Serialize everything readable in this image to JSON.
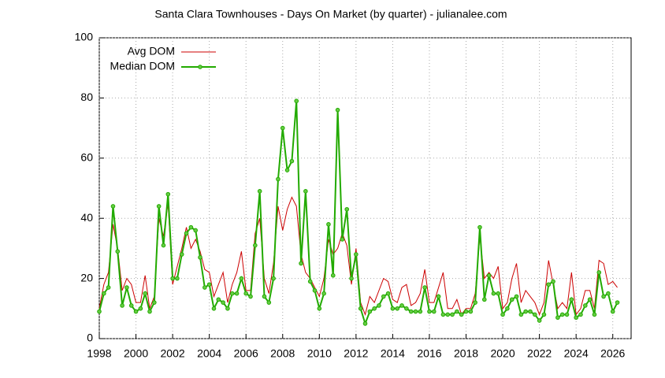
{
  "chart_data": {
    "type": "line",
    "title": "Santa Clara Townhouses - Days On Market (by quarter) - julianalee.com",
    "x": [
      1998,
      1998.25,
      1998.5,
      1998.75,
      1999,
      1999.25,
      1999.5,
      1999.75,
      2000,
      2000.25,
      2000.5,
      2000.75,
      2001,
      2001.25,
      2001.5,
      2001.75,
      2002,
      2002.25,
      2002.5,
      2002.75,
      2003,
      2003.25,
      2003.5,
      2003.75,
      2004,
      2004.25,
      2004.5,
      2004.75,
      2005,
      2005.25,
      2005.5,
      2005.75,
      2006,
      2006.25,
      2006.5,
      2006.75,
      2007,
      2007.25,
      2007.5,
      2007.75,
      2008,
      2008.25,
      2008.5,
      2008.75,
      2009,
      2009.25,
      2009.5,
      2009.75,
      2010,
      2010.25,
      2010.5,
      2010.75,
      2011,
      2011.25,
      2011.5,
      2011.75,
      2012,
      2012.25,
      2012.5,
      2012.75,
      2013,
      2013.25,
      2013.5,
      2013.75,
      2014,
      2014.25,
      2014.5,
      2014.75,
      2015,
      2015.25,
      2015.5,
      2015.75,
      2016,
      2016.25,
      2016.5,
      2016.75,
      2017,
      2017.25,
      2017.5,
      2017.75,
      2018,
      2018.25,
      2018.5,
      2018.75,
      2019,
      2019.25,
      2019.5,
      2019.75,
      2020,
      2020.25,
      2020.5,
      2020.75,
      2021,
      2021.25,
      2021.5,
      2021.75,
      2022,
      2022.25,
      2022.5,
      2022.75,
      2023,
      2023.25,
      2023.5,
      2023.75,
      2024,
      2024.25,
      2024.5,
      2024.75,
      2025,
      2025.25,
      2025.5,
      2025.75,
      2026,
      2026.25
    ],
    "series": [
      {
        "name": "Avg DOM",
        "color": "#cc0000",
        "values": [
          10,
          18,
          22,
          38,
          30,
          16,
          20,
          18,
          12,
          12,
          21,
          10,
          14,
          40,
          34,
          45,
          18,
          24,
          30,
          37,
          30,
          33,
          29,
          23,
          22,
          14,
          18,
          22,
          12,
          18,
          22,
          29,
          16,
          16,
          35,
          40,
          20,
          15,
          25,
          44,
          36,
          43,
          47,
          44,
          28,
          22,
          20,
          17,
          14,
          20,
          33,
          28,
          30,
          35,
          31,
          18,
          30,
          12,
          8,
          14,
          12,
          16,
          20,
          19,
          13,
          12,
          17,
          18,
          11,
          12,
          15,
          23,
          12,
          12,
          17,
          22,
          10,
          10,
          13,
          8,
          10,
          10,
          15,
          34,
          20,
          22,
          20,
          24,
          10,
          12,
          20,
          25,
          12,
          16,
          14,
          12,
          8,
          12,
          26,
          18,
          10,
          12,
          10,
          22,
          8,
          10,
          16,
          16,
          10,
          26,
          25,
          18,
          19,
          17
        ]
      },
      {
        "name": "Median DOM",
        "color": "#22aa00",
        "values": [
          9,
          15,
          17,
          44,
          29,
          11,
          17,
          11,
          9,
          10,
          15,
          9,
          12,
          44,
          31,
          48,
          20,
          20,
          28,
          35,
          37,
          36,
          27,
          17,
          18,
          10,
          13,
          12,
          10,
          15,
          15,
          20,
          15,
          14,
          31,
          49,
          14,
          12,
          20,
          53,
          70,
          56,
          59,
          79,
          25,
          49,
          19,
          16,
          10,
          15,
          38,
          21,
          76,
          33,
          43,
          20,
          28,
          10,
          5,
          9,
          10,
          11,
          14,
          15,
          10,
          10,
          11,
          10,
          9,
          9,
          9,
          17,
          9,
          9,
          14,
          8,
          8,
          8,
          9,
          8,
          9,
          9,
          12,
          37,
          13,
          21,
          15,
          15,
          8,
          10,
          13,
          14,
          8,
          9,
          9,
          8,
          6,
          8,
          18,
          19,
          7,
          8,
          8,
          13,
          7,
          8,
          11,
          13,
          8,
          22,
          14,
          15,
          9,
          12
        ]
      }
    ],
    "xlim": [
      1998,
      2027
    ],
    "xticks": [
      1998,
      2000,
      2002,
      2004,
      2006,
      2008,
      2010,
      2012,
      2014,
      2016,
      2018,
      2020,
      2022,
      2024,
      2026
    ],
    "ylim": [
      0,
      100
    ],
    "yticks": [
      0,
      20,
      40,
      60,
      80,
      100
    ],
    "grid": true,
    "legend": "top-left"
  }
}
